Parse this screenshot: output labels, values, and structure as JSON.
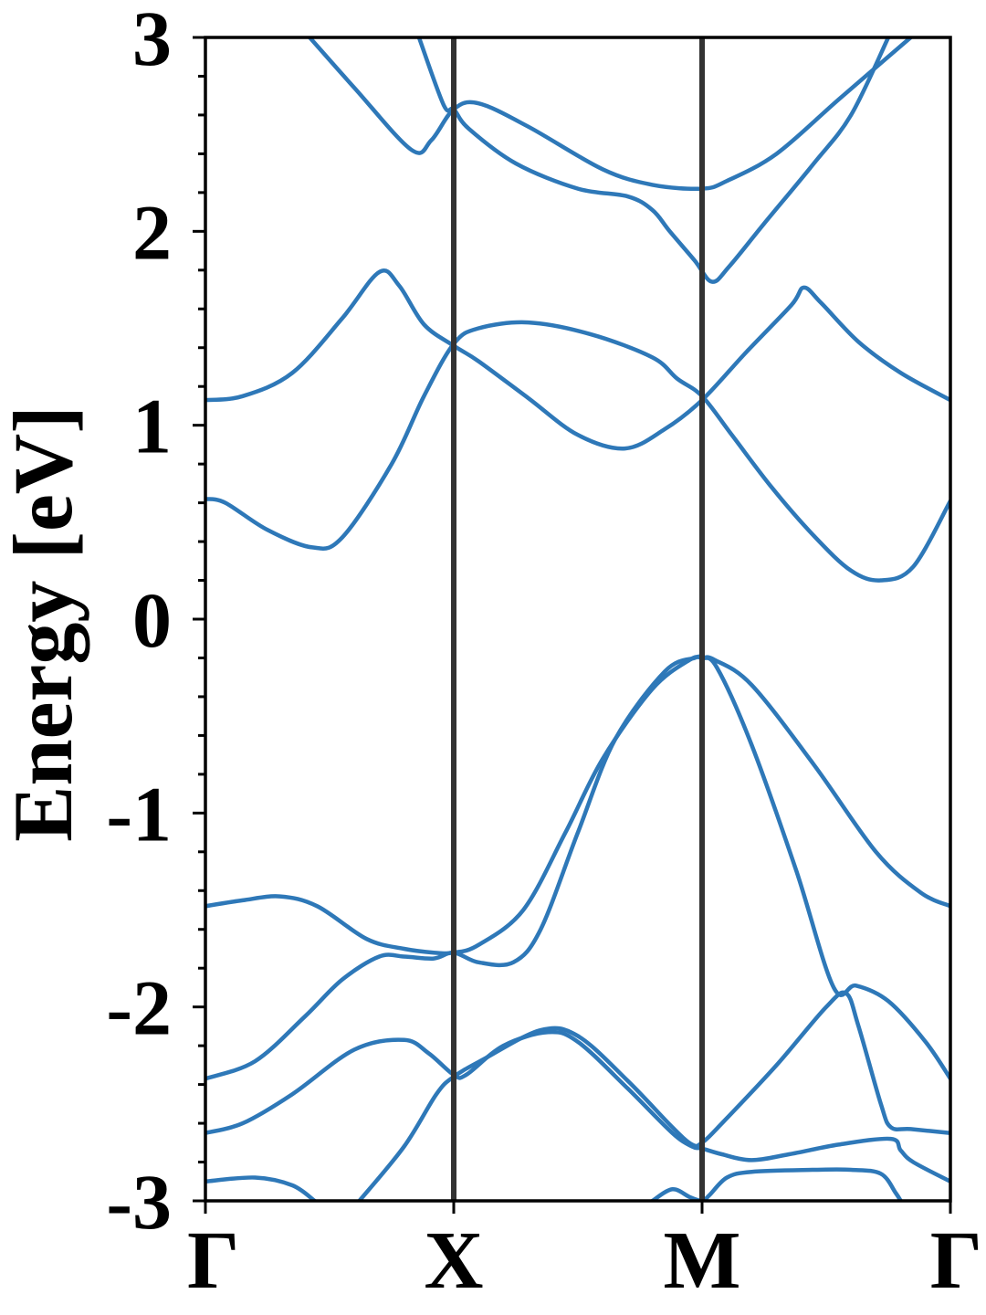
{
  "chart_data": {
    "type": "line",
    "title": "",
    "xlabel": "",
    "ylabel": "Energy [eV]",
    "ylim": [
      -3,
      3
    ],
    "xlim": [
      0,
      3
    ],
    "y_ticks": [
      -3,
      -2,
      -1,
      0,
      1,
      2,
      3
    ],
    "y_tick_labels": [
      "-3",
      "-2",
      "-1",
      "0",
      "1",
      "2",
      "3"
    ],
    "x_ticks": [
      0,
      1,
      2,
      3
    ],
    "x_tick_labels": [
      "Γ",
      "X",
      "M",
      "Γ"
    ],
    "high_symmetry_lines": [
      1,
      2
    ],
    "colors": {
      "band": "#2e78b8",
      "symmetry_line": "#333333",
      "axes": "#000000"
    },
    "grid": false,
    "series": [
      {
        "points": [
          [
            0.86,
            3.0
          ],
          [
            0.96,
            2.65
          ],
          [
            1.0,
            2.63
          ],
          [
            1.06,
            2.53
          ],
          [
            1.25,
            2.35
          ],
          [
            1.5,
            2.22
          ],
          [
            1.7,
            2.18
          ],
          [
            1.8,
            2.11
          ],
          [
            1.87,
            2.0
          ],
          [
            1.97,
            1.85
          ],
          [
            2.04,
            1.74
          ],
          [
            2.11,
            1.82
          ],
          [
            2.25,
            2.04
          ],
          [
            2.45,
            2.35
          ],
          [
            2.6,
            2.6
          ],
          [
            2.75,
            3.0
          ]
        ]
      },
      {
        "points": [
          [
            0.42,
            3.0
          ],
          [
            0.6,
            2.74
          ],
          [
            0.83,
            2.42
          ],
          [
            0.91,
            2.47
          ],
          [
            1.0,
            2.63
          ],
          [
            1.1,
            2.66
          ],
          [
            1.3,
            2.54
          ],
          [
            1.6,
            2.32
          ],
          [
            1.8,
            2.24
          ],
          [
            2.0,
            2.22
          ],
          [
            2.1,
            2.26
          ],
          [
            2.3,
            2.4
          ],
          [
            2.55,
            2.68
          ],
          [
            2.84,
            3.0
          ]
        ]
      },
      {
        "points": [
          [
            0.0,
            1.13
          ],
          [
            0.15,
            1.15
          ],
          [
            0.35,
            1.27
          ],
          [
            0.55,
            1.55
          ],
          [
            0.7,
            1.79
          ],
          [
            0.78,
            1.72
          ],
          [
            0.88,
            1.52
          ],
          [
            1.0,
            1.41
          ],
          [
            1.1,
            1.33
          ],
          [
            1.3,
            1.14
          ],
          [
            1.5,
            0.95
          ],
          [
            1.69,
            0.88
          ],
          [
            1.85,
            0.98
          ],
          [
            2.0,
            1.13
          ],
          [
            2.18,
            1.38
          ],
          [
            2.36,
            1.62
          ],
          [
            2.41,
            1.71
          ],
          [
            2.48,
            1.63
          ],
          [
            2.63,
            1.43
          ],
          [
            2.8,
            1.27
          ],
          [
            3.0,
            1.13
          ]
        ]
      },
      {
        "points": [
          [
            0.0,
            0.62
          ],
          [
            0.08,
            0.6
          ],
          [
            0.25,
            0.46
          ],
          [
            0.43,
            0.37
          ],
          [
            0.55,
            0.42
          ],
          [
            0.75,
            0.8
          ],
          [
            0.88,
            1.15
          ],
          [
            1.0,
            1.42
          ],
          [
            1.1,
            1.5
          ],
          [
            1.3,
            1.53
          ],
          [
            1.55,
            1.47
          ],
          [
            1.8,
            1.35
          ],
          [
            1.9,
            1.24
          ],
          [
            2.0,
            1.15
          ],
          [
            2.12,
            0.95
          ],
          [
            2.28,
            0.68
          ],
          [
            2.45,
            0.43
          ],
          [
            2.6,
            0.25
          ],
          [
            2.72,
            0.2
          ],
          [
            2.85,
            0.27
          ],
          [
            3.0,
            0.61
          ]
        ]
      },
      {
        "points": [
          [
            0.0,
            -1.48
          ],
          [
            0.15,
            -1.45
          ],
          [
            0.3,
            -1.43
          ],
          [
            0.45,
            -1.48
          ],
          [
            0.65,
            -1.65
          ],
          [
            0.8,
            -1.7
          ],
          [
            0.92,
            -1.72
          ],
          [
            1.0,
            -1.72
          ],
          [
            1.1,
            -1.68
          ],
          [
            1.28,
            -1.5
          ],
          [
            1.45,
            -1.1
          ],
          [
            1.6,
            -0.72
          ],
          [
            1.8,
            -0.36
          ],
          [
            1.95,
            -0.21
          ],
          [
            2.0,
            -0.2
          ],
          [
            2.05,
            -0.21
          ],
          [
            2.2,
            -0.34
          ],
          [
            2.45,
            -0.75
          ],
          [
            2.7,
            -1.2
          ],
          [
            2.88,
            -1.41
          ],
          [
            3.0,
            -1.48
          ]
        ]
      },
      {
        "points": [
          [
            0.0,
            -2.37
          ],
          [
            0.2,
            -2.28
          ],
          [
            0.4,
            -2.05
          ],
          [
            0.55,
            -1.86
          ],
          [
            0.7,
            -1.74
          ],
          [
            0.8,
            -1.74
          ],
          [
            0.92,
            -1.75
          ],
          [
            1.0,
            -1.72
          ],
          [
            1.1,
            -1.77
          ],
          [
            1.24,
            -1.77
          ],
          [
            1.35,
            -1.6
          ],
          [
            1.5,
            -1.1
          ],
          [
            1.65,
            -0.62
          ],
          [
            1.85,
            -0.27
          ],
          [
            1.97,
            -0.2
          ],
          [
            2.0,
            -0.2
          ],
          [
            2.06,
            -0.25
          ],
          [
            2.2,
            -0.65
          ],
          [
            2.38,
            -1.3
          ],
          [
            2.53,
            -1.9
          ],
          [
            2.62,
            -1.89
          ],
          [
            2.75,
            -1.97
          ],
          [
            2.9,
            -2.18
          ],
          [
            3.0,
            -2.37
          ]
        ]
      },
      {
        "points": [
          [
            0.0,
            -2.65
          ],
          [
            0.15,
            -2.6
          ],
          [
            0.35,
            -2.45
          ],
          [
            0.6,
            -2.22
          ],
          [
            0.8,
            -2.17
          ],
          [
            0.9,
            -2.24
          ],
          [
            1.0,
            -2.35
          ],
          [
            1.05,
            -2.35
          ],
          [
            1.2,
            -2.2
          ],
          [
            1.38,
            -2.13
          ],
          [
            1.5,
            -2.18
          ],
          [
            1.7,
            -2.42
          ],
          [
            1.88,
            -2.65
          ],
          [
            1.96,
            -2.72
          ],
          [
            2.0,
            -2.73
          ],
          [
            2.08,
            -2.76
          ],
          [
            2.2,
            -2.79
          ],
          [
            2.35,
            -2.76
          ],
          [
            2.55,
            -2.71
          ],
          [
            2.76,
            -2.68
          ],
          [
            2.8,
            -2.74
          ],
          [
            2.85,
            -2.8
          ],
          [
            3.0,
            -2.9
          ]
        ]
      },
      {
        "points": [
          [
            0.62,
            -3.0
          ],
          [
            0.8,
            -2.72
          ],
          [
            0.93,
            -2.45
          ],
          [
            1.0,
            -2.36
          ],
          [
            1.12,
            -2.27
          ],
          [
            1.35,
            -2.12
          ],
          [
            1.5,
            -2.15
          ],
          [
            1.7,
            -2.38
          ],
          [
            1.88,
            -2.62
          ],
          [
            1.96,
            -2.71
          ],
          [
            2.0,
            -2.7
          ],
          [
            2.08,
            -2.6
          ],
          [
            2.3,
            -2.3
          ],
          [
            2.5,
            -2.0
          ],
          [
            2.58,
            -1.93
          ],
          [
            2.63,
            -2.1
          ],
          [
            2.72,
            -2.5
          ],
          [
            2.76,
            -2.62
          ],
          [
            2.84,
            -2.63
          ],
          [
            3.0,
            -2.65
          ]
        ]
      },
      {
        "points": [
          [
            0.0,
            -2.9
          ],
          [
            0.2,
            -2.88
          ],
          [
            0.35,
            -2.92
          ],
          [
            0.44,
            -3.0
          ]
        ]
      },
      {
        "points": [
          [
            1.8,
            -3.0
          ],
          [
            1.88,
            -2.94
          ],
          [
            1.95,
            -2.98
          ],
          [
            2.0,
            -3.0
          ],
          [
            2.03,
            -2.97
          ],
          [
            2.1,
            -2.88
          ],
          [
            2.2,
            -2.85
          ],
          [
            2.45,
            -2.84
          ],
          [
            2.6,
            -2.84
          ],
          [
            2.72,
            -2.86
          ],
          [
            2.78,
            -2.96
          ],
          [
            2.8,
            -3.0
          ]
        ]
      }
    ]
  }
}
